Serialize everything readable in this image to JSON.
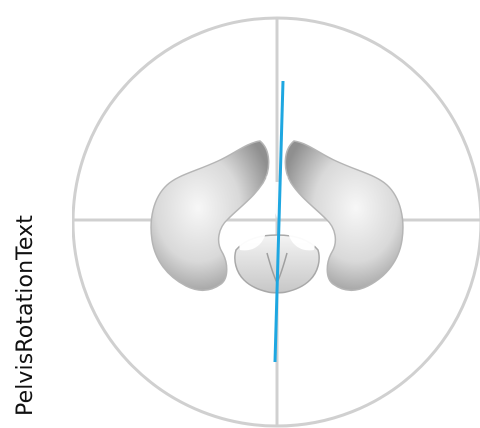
{
  "label": {
    "text": "PelvisRotationText"
  },
  "colors": {
    "guide": "#d0d0d0",
    "axis": "#1ea7e1",
    "bone_light": "#f5f5f5",
    "bone_mid": "#cfcfcf",
    "bone_dark": "#9a9a9a"
  },
  "diagram": {
    "icon": "pelvis-icon"
  }
}
